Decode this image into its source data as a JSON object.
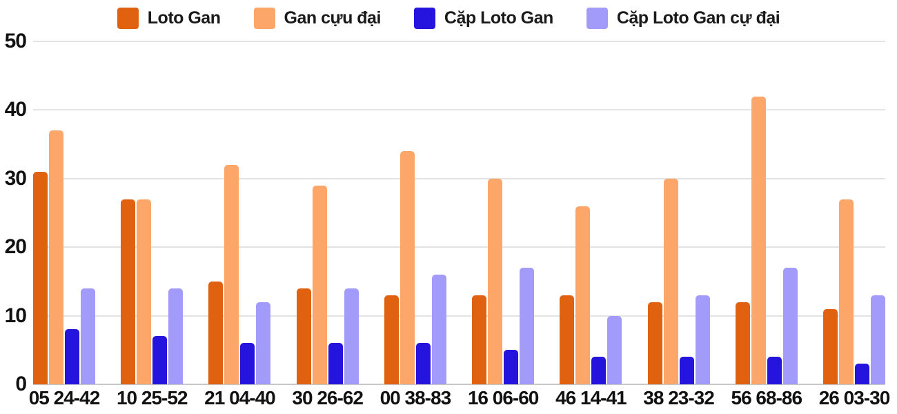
{
  "chart_data": {
    "type": "bar",
    "title": "",
    "xlabel": "",
    "ylabel": "",
    "categories": [
      "05 24-42",
      "10 25-52",
      "21 04-40",
      "30 26-62",
      "00 38-83",
      "16 06-60",
      "46 14-41",
      "38 23-32",
      "56 68-86",
      "26 03-30"
    ],
    "series": [
      {
        "name": "Loto Gan",
        "color": "#E06211",
        "values": [
          31,
          27,
          15,
          14,
          13,
          13,
          13,
          12,
          12,
          11
        ]
      },
      {
        "name": "Gan cựu đại",
        "color": "#FDA66A",
        "values": [
          37,
          27,
          32,
          29,
          34,
          30,
          26,
          30,
          42,
          27
        ]
      },
      {
        "name": "Cặp Loto Gan",
        "color": "#2514DE",
        "values": [
          8,
          7,
          6,
          6,
          6,
          5,
          4,
          4,
          4,
          3
        ]
      },
      {
        "name": "Cặp Loto Gan cự đại",
        "color": "#A39BF9",
        "values": [
          14,
          14,
          12,
          14,
          16,
          17,
          10,
          13,
          17,
          13
        ]
      }
    ],
    "ylim": [
      0,
      50
    ],
    "yticks": [
      0,
      10,
      20,
      30,
      40,
      50
    ],
    "grid": true,
    "legend_position": "top"
  },
  "colors": {
    "gridline": "#e3e3e3",
    "baseline": "#c9c9c9",
    "text": "#111111",
    "background": "#ffffff"
  }
}
